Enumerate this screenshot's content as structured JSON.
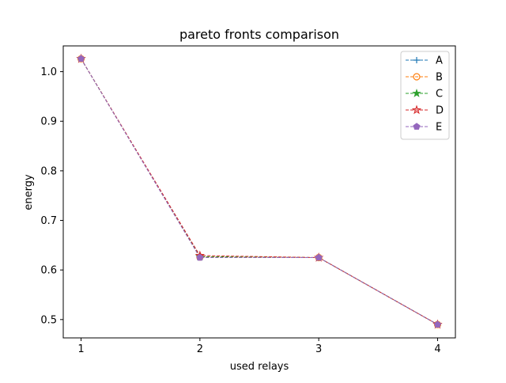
{
  "chart_data": {
    "type": "line",
    "title": "pareto fronts comparison",
    "xlabel": "used relays",
    "ylabel": "energy",
    "x": [
      1,
      2,
      3,
      4
    ],
    "xticks": [
      "1",
      "2",
      "3",
      "4"
    ],
    "yticks": [
      "0.5",
      "0.6",
      "0.7",
      "0.8",
      "0.9",
      "1.0"
    ],
    "xlim": [
      0.85,
      4.15
    ],
    "ylim": [
      0.463,
      1.052
    ],
    "grid": false,
    "legend_position": "top-right",
    "series": [
      {
        "name": "A",
        "values": [
          1.026,
          0.626,
          0.625,
          0.49
        ],
        "color": "#1f77b4",
        "marker": "plus",
        "linestyle": "dashed"
      },
      {
        "name": "B",
        "values": [
          1.026,
          0.626,
          0.625,
          0.49
        ],
        "color": "#ff7f0e",
        "marker": "circle-open",
        "linestyle": "dashed"
      },
      {
        "name": "C",
        "values": [
          1.026,
          0.627,
          0.625,
          0.49
        ],
        "color": "#2ca02c",
        "marker": "star",
        "linestyle": "dashed"
      },
      {
        "name": "D",
        "values": [
          1.026,
          0.629,
          0.625,
          0.49
        ],
        "color": "#d62728",
        "marker": "star-open",
        "linestyle": "dashed"
      },
      {
        "name": "E",
        "values": [
          1.026,
          0.625,
          0.625,
          0.49
        ],
        "color": "#9467bd",
        "marker": "pentagon",
        "linestyle": "dashed"
      }
    ]
  }
}
